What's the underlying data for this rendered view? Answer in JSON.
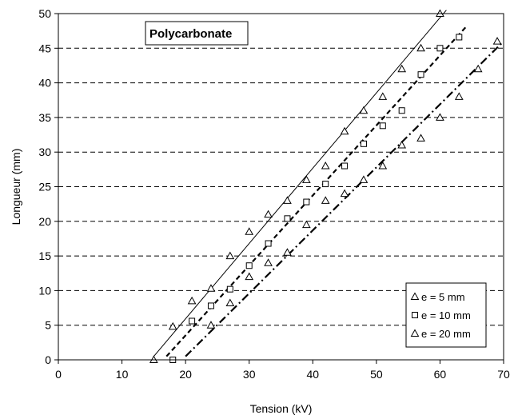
{
  "chart_data": {
    "type": "scatter",
    "title": "Polycarbonate",
    "xlabel": "Tension (kV)",
    "ylabel": "Longueur (mm)",
    "xlim": [
      0,
      70
    ],
    "ylim": [
      0,
      50
    ],
    "xticks": [
      0,
      10,
      20,
      30,
      40,
      50,
      60,
      70
    ],
    "yticks": [
      0,
      5,
      10,
      15,
      20,
      25,
      30,
      35,
      40,
      45,
      50
    ],
    "grid": "horizontal dashed",
    "legend_position": "bottom-right",
    "series": [
      {
        "name": "e = 5 mm",
        "marker": "triangle",
        "line_style": "solid",
        "points": [
          [
            15,
            0
          ],
          [
            18,
            4.8
          ],
          [
            21,
            8.5
          ],
          [
            24,
            10.3
          ],
          [
            27,
            15
          ],
          [
            30,
            18.5
          ],
          [
            33,
            21
          ],
          [
            36,
            23
          ],
          [
            39,
            26
          ],
          [
            42,
            28
          ],
          [
            45,
            33
          ],
          [
            48,
            36
          ],
          [
            51,
            38
          ],
          [
            54,
            42
          ],
          [
            57,
            45
          ],
          [
            60,
            50
          ]
        ],
        "fit": [
          [
            15,
            0.5
          ],
          [
            61,
            50.5
          ]
        ]
      },
      {
        "name": "e = 10 mm",
        "marker": "square",
        "line_style": "dashed",
        "points": [
          [
            18,
            0
          ],
          [
            21,
            5.6
          ],
          [
            24,
            7.8
          ],
          [
            27,
            10.2
          ],
          [
            30,
            13.6
          ],
          [
            33,
            16.8
          ],
          [
            36,
            20.4
          ],
          [
            39,
            22.8
          ],
          [
            42,
            25.4
          ],
          [
            45,
            28
          ],
          [
            48,
            31.2
          ],
          [
            51,
            33.8
          ],
          [
            54,
            36
          ],
          [
            57,
            41.2
          ],
          [
            60,
            45
          ],
          [
            63,
            46.6
          ]
        ],
        "fit": [
          [
            17,
            0.5
          ],
          [
            64,
            48
          ]
        ]
      },
      {
        "name": "e = 20 mm",
        "marker": "triangle",
        "line_style": "dash-dot",
        "points": [
          [
            24,
            5
          ],
          [
            27,
            8.2
          ],
          [
            30,
            12
          ],
          [
            33,
            14
          ],
          [
            36,
            15.5
          ],
          [
            39,
            19.5
          ],
          [
            42,
            23
          ],
          [
            45,
            24
          ],
          [
            48,
            26
          ],
          [
            51,
            28
          ],
          [
            54,
            31
          ],
          [
            57,
            32
          ],
          [
            60,
            35
          ],
          [
            63,
            38
          ],
          [
            66,
            42
          ],
          [
            69,
            46
          ]
        ],
        "fit": [
          [
            20,
            0.5
          ],
          [
            70,
            46
          ]
        ]
      }
    ]
  }
}
